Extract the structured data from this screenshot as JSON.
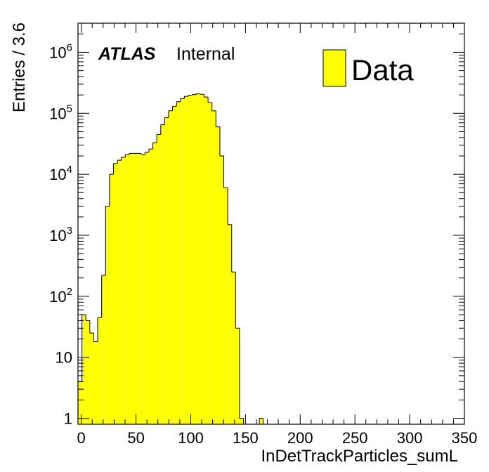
{
  "chart_data": {
    "type": "bar",
    "title": "",
    "xlabel": "InDetTrackParticles_sumL",
    "ylabel": "Entries / 3.6",
    "xlim": [
      -3,
      350
    ],
    "ylim": [
      0.8,
      3000000
    ],
    "yscale": "log",
    "bin_width": 3.6,
    "x_start": -3,
    "x_ticks": [
      "0",
      "50",
      "100",
      "150",
      "200",
      "250",
      "300",
      "350"
    ],
    "x_tick_values": [
      0,
      50,
      100,
      150,
      200,
      250,
      300,
      350
    ],
    "y_ticks": [
      {
        "value": 1,
        "base": "1",
        "exp": ""
      },
      {
        "value": 10,
        "base": "10",
        "exp": ""
      },
      {
        "value": 100,
        "base": "10",
        "exp": "2"
      },
      {
        "value": 1000,
        "base": "10",
        "exp": "3"
      },
      {
        "value": 10000,
        "base": "10",
        "exp": "4"
      },
      {
        "value": 100000,
        "base": "10",
        "exp": "5"
      },
      {
        "value": 1000000,
        "base": "10",
        "exp": "6"
      }
    ],
    "grid": false,
    "legend_position": "top-right",
    "series": [
      {
        "name": "Data",
        "color": "#ffff00",
        "edge_color": "#000000",
        "values": [
          4,
          50,
          40,
          25,
          18,
          45,
          220,
          3000,
          10000,
          15000,
          17000,
          19000,
          21000,
          22000,
          22000,
          22000,
          21000,
          23000,
          26000,
          33000,
          45000,
          65000,
          85000,
          110000,
          130000,
          155000,
          175000,
          190000,
          198000,
          203000,
          208000,
          205000,
          185000,
          150000,
          110000,
          60000,
          20000,
          6000,
          1500,
          250,
          30,
          1,
          0,
          0,
          0,
          0,
          1,
          0,
          0,
          0,
          0,
          0,
          0,
          0,
          0,
          0,
          0,
          0,
          0,
          0,
          0,
          0,
          0,
          0,
          0,
          0,
          0,
          0,
          0,
          0,
          0,
          0,
          0,
          0,
          0,
          0,
          0,
          0,
          0,
          0,
          0,
          0,
          0,
          0,
          0,
          0,
          0,
          0,
          0,
          0,
          0,
          0,
          0,
          0,
          0,
          0,
          0
        ]
      }
    ]
  },
  "atlas_label": "ATLAS",
  "internal_label": "Internal",
  "legend_label": "Data"
}
